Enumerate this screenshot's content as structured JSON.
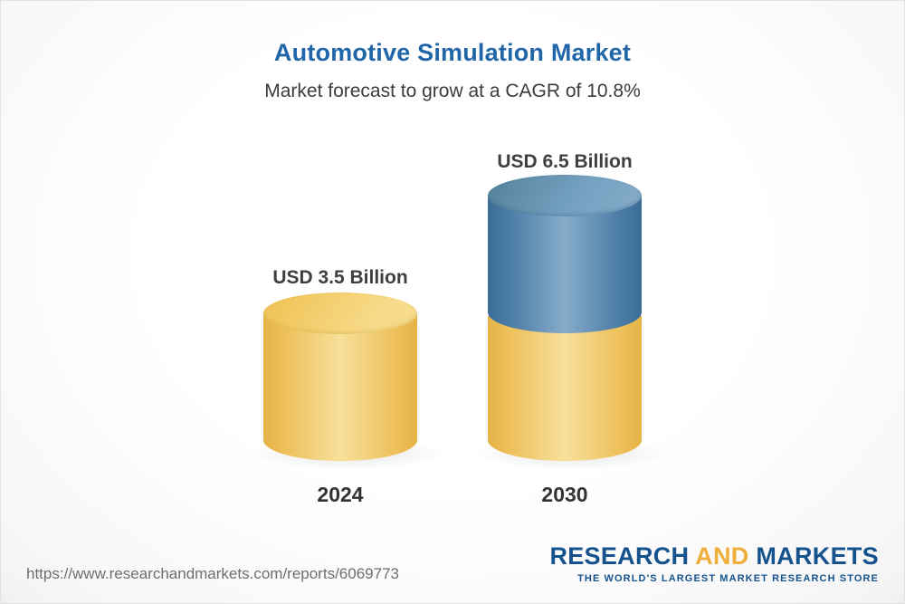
{
  "header": {
    "title": "Automotive Simulation Market",
    "subtitle": "Market forecast to grow at a CAGR of 10.8%"
  },
  "chart_data": {
    "type": "bar",
    "bar_style": "3d-cylinder",
    "title": "Automotive Simulation Market",
    "subtitle": "Market forecast to grow at a CAGR of 10.8%",
    "categories": [
      "2024",
      "2030"
    ],
    "values": [
      3.5,
      6.5
    ],
    "unit": "USD Billion",
    "value_labels": [
      "USD 3.5 Billion",
      "USD 6.5 Billion"
    ],
    "cagr_percent": 10.8,
    "legend": "none",
    "grid": "off",
    "colors": {
      "base_segment": "#F3CF72",
      "growth_segment": "#6493B8",
      "title_text": "#2166A8",
      "label_text": "#3F3F3F"
    },
    "notes": "2030 cylinder shows gold base equal to 2024 value with incremental growth segment in blue on top"
  },
  "footer": {
    "url": "https://www.researchandmarkets.com/reports/6069773",
    "logo": {
      "part1": "RESEARCH",
      "part2": "AND",
      "part3": "MARKETS",
      "tagline": "THE WORLD'S LARGEST MARKET RESEARCH STORE"
    }
  }
}
